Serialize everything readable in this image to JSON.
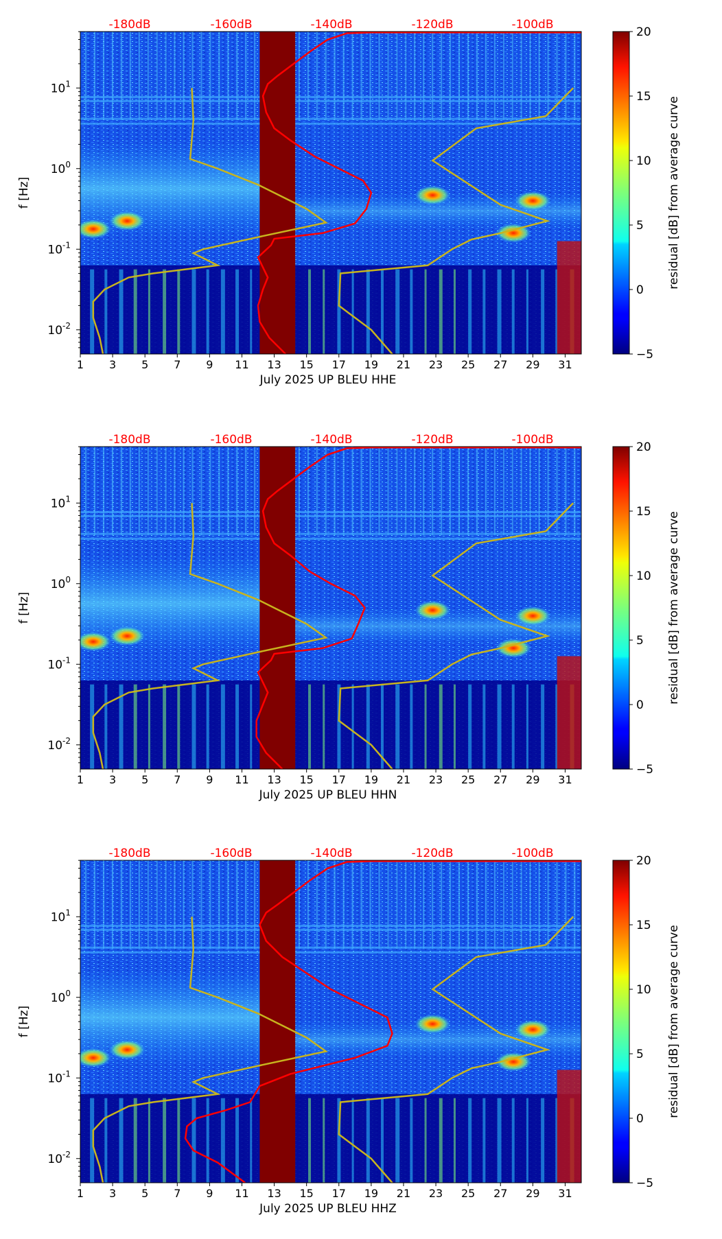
{
  "chart_data": [
    {
      "type": "heatmap",
      "title": "",
      "xlabel": "July 2025 UP BLEU  HHE",
      "ylabel": "f [Hz]",
      "x_ticks": [
        "1",
        "3",
        "5",
        "7",
        "9",
        "11",
        "13",
        "15",
        "17",
        "19",
        "21",
        "23",
        "25",
        "27",
        "29",
        "31"
      ],
      "xlim": [
        1,
        32
      ],
      "ylim_log10": [
        -2.3,
        1.7
      ],
      "y_ticks": [
        {
          "exp": "-2",
          "label": "10"
        },
        {
          "exp": "-1",
          "label": "10"
        },
        {
          "exp": "0",
          "label": "10"
        },
        {
          "exp": "1",
          "label": "10"
        }
      ],
      "top_labels": [
        "-180dB",
        "-160dB",
        "-140dB",
        "-120dB",
        "-100dB"
      ],
      "colorbar": {
        "label": "residual [dB] from average curve",
        "ticks": [
          "20",
          "15",
          "10",
          "5",
          "0",
          "−5"
        ],
        "range": [
          -5,
          20
        ]
      },
      "data_gap_days": [
        12.1,
        14.3
      ],
      "yellow_curve": [
        [
          2.4,
          -2.3
        ],
        [
          2.2,
          -2.1
        ],
        [
          1.8,
          -1.85
        ],
        [
          1.8,
          -1.65
        ],
        [
          2.5,
          -1.5
        ],
        [
          4.0,
          -1.35
        ],
        [
          5.5,
          -1.3
        ],
        [
          7.5,
          -1.25
        ],
        [
          9.5,
          -1.2
        ],
        [
          8.0,
          -1.05
        ],
        [
          8.6,
          -1.0
        ],
        [
          12.0,
          -0.85
        ],
        [
          16.2,
          -0.67
        ],
        [
          15.0,
          -0.5
        ],
        [
          12.0,
          -0.2
        ],
        [
          9.5,
          0.0
        ],
        [
          7.8,
          0.12
        ],
        [
          8.0,
          0.6
        ],
        [
          7.9,
          1.0
        ]
      ],
      "red_curve": [
        [
          13.7,
          -2.3
        ],
        [
          12.7,
          -2.1
        ],
        [
          12.1,
          -1.9
        ],
        [
          12.0,
          -1.7
        ],
        [
          12.3,
          -1.5
        ],
        [
          12.6,
          -1.35
        ],
        [
          12.0,
          -1.1
        ],
        [
          12.8,
          -0.95
        ],
        [
          13.0,
          -0.87
        ],
        [
          16.0,
          -0.8
        ],
        [
          18.0,
          -0.68
        ],
        [
          18.7,
          -0.5
        ],
        [
          19.0,
          -0.3
        ],
        [
          18.5,
          -0.15
        ],
        [
          17.0,
          0.0
        ],
        [
          15.5,
          0.15
        ],
        [
          14.0,
          0.35
        ],
        [
          13.0,
          0.5
        ],
        [
          12.5,
          0.7
        ],
        [
          12.3,
          0.9
        ],
        [
          12.6,
          1.05
        ],
        [
          13.2,
          1.15
        ],
        [
          14.2,
          1.3
        ],
        [
          15.2,
          1.45
        ],
        [
          16.3,
          1.6
        ],
        [
          17.5,
          1.68
        ],
        [
          19.0,
          1.69
        ],
        [
          25.0,
          1.69
        ],
        [
          32.0,
          1.69
        ]
      ],
      "yellow_curve_right": [
        [
          20.3,
          -2.3
        ],
        [
          19.0,
          -2.0
        ],
        [
          17.0,
          -1.7
        ],
        [
          17.1,
          -1.3
        ],
        [
          22.5,
          -1.2
        ],
        [
          24.0,
          -1.0
        ],
        [
          25.2,
          -0.88
        ],
        [
          27.0,
          -0.8
        ],
        [
          29.9,
          -0.65
        ],
        [
          27.0,
          -0.45
        ],
        [
          22.8,
          0.1
        ],
        [
          25.5,
          0.5
        ],
        [
          29.8,
          0.65
        ],
        [
          31.5,
          1.0
        ]
      ],
      "hot_spots": [
        [
          22.8,
          -0.33
        ],
        [
          29.0,
          -0.4
        ],
        [
          27.8,
          -0.8
        ],
        [
          3.9,
          -0.65
        ],
        [
          1.8,
          -0.75
        ]
      ]
    },
    {
      "type": "heatmap",
      "title": "",
      "xlabel": "July 2025 UP BLEU  HHN",
      "ylabel": "f [Hz]",
      "x_ticks": [
        "1",
        "3",
        "5",
        "7",
        "9",
        "11",
        "13",
        "15",
        "17",
        "19",
        "21",
        "23",
        "25",
        "27",
        "29",
        "31"
      ],
      "xlim": [
        1,
        32
      ],
      "ylim_log10": [
        -2.3,
        1.7
      ],
      "y_ticks": [
        {
          "exp": "-2",
          "label": "10"
        },
        {
          "exp": "-1",
          "label": "10"
        },
        {
          "exp": "0",
          "label": "10"
        },
        {
          "exp": "1",
          "label": "10"
        }
      ],
      "top_labels": [
        "-180dB",
        "-160dB",
        "-140dB",
        "-120dB",
        "-100dB"
      ],
      "colorbar": {
        "label": "residual [dB] from average curve",
        "ticks": [
          "20",
          "15",
          "10",
          "5",
          "0",
          "−5"
        ],
        "range": [
          -5,
          20
        ]
      },
      "data_gap_days": [
        12.1,
        14.3
      ],
      "yellow_curve": [
        [
          2.4,
          -2.3
        ],
        [
          2.2,
          -2.1
        ],
        [
          1.8,
          -1.85
        ],
        [
          1.8,
          -1.65
        ],
        [
          2.5,
          -1.5
        ],
        [
          4.0,
          -1.35
        ],
        [
          5.5,
          -1.3
        ],
        [
          7.5,
          -1.25
        ],
        [
          9.5,
          -1.2
        ],
        [
          8.0,
          -1.05
        ],
        [
          8.6,
          -1.0
        ],
        [
          12.0,
          -0.85
        ],
        [
          16.2,
          -0.67
        ],
        [
          15.0,
          -0.5
        ],
        [
          12.0,
          -0.2
        ],
        [
          9.5,
          0.0
        ],
        [
          7.8,
          0.12
        ],
        [
          8.0,
          0.6
        ],
        [
          7.9,
          1.0
        ]
      ],
      "red_curve": [
        [
          13.5,
          -2.3
        ],
        [
          12.5,
          -2.1
        ],
        [
          11.9,
          -1.9
        ],
        [
          11.9,
          -1.7
        ],
        [
          12.3,
          -1.5
        ],
        [
          12.6,
          -1.35
        ],
        [
          12.0,
          -1.1
        ],
        [
          12.8,
          -0.95
        ],
        [
          13.0,
          -0.87
        ],
        [
          16.0,
          -0.8
        ],
        [
          17.8,
          -0.68
        ],
        [
          18.2,
          -0.5
        ],
        [
          18.6,
          -0.3
        ],
        [
          18.0,
          -0.15
        ],
        [
          16.5,
          0.0
        ],
        [
          15.2,
          0.15
        ],
        [
          14.0,
          0.35
        ],
        [
          13.0,
          0.5
        ],
        [
          12.5,
          0.7
        ],
        [
          12.3,
          0.9
        ],
        [
          12.6,
          1.05
        ],
        [
          13.2,
          1.15
        ],
        [
          14.2,
          1.3
        ],
        [
          15.2,
          1.45
        ],
        [
          16.3,
          1.6
        ],
        [
          17.5,
          1.68
        ],
        [
          19.0,
          1.69
        ],
        [
          25.0,
          1.69
        ],
        [
          32.0,
          1.69
        ]
      ],
      "yellow_curve_right": [
        [
          20.3,
          -2.3
        ],
        [
          19.0,
          -2.0
        ],
        [
          17.0,
          -1.7
        ],
        [
          17.1,
          -1.3
        ],
        [
          22.5,
          -1.2
        ],
        [
          24.0,
          -1.0
        ],
        [
          25.2,
          -0.88
        ],
        [
          27.0,
          -0.8
        ],
        [
          29.9,
          -0.65
        ],
        [
          27.0,
          -0.45
        ],
        [
          22.8,
          0.1
        ],
        [
          25.5,
          0.5
        ],
        [
          29.8,
          0.65
        ],
        [
          31.5,
          1.0
        ]
      ],
      "hot_spots": [
        [
          22.8,
          -0.33
        ],
        [
          29.0,
          -0.4
        ],
        [
          27.8,
          -0.8
        ],
        [
          3.9,
          -0.65
        ],
        [
          1.8,
          -0.72
        ]
      ]
    },
    {
      "type": "heatmap",
      "title": "",
      "xlabel": "July 2025 UP BLEU  HHZ",
      "ylabel": "f [Hz]",
      "x_ticks": [
        "1",
        "3",
        "5",
        "7",
        "9",
        "11",
        "13",
        "15",
        "17",
        "19",
        "21",
        "23",
        "25",
        "27",
        "29",
        "31"
      ],
      "xlim": [
        1,
        32
      ],
      "ylim_log10": [
        -2.3,
        1.7
      ],
      "y_ticks": [
        {
          "exp": "-2",
          "label": "10"
        },
        {
          "exp": "-1",
          "label": "10"
        },
        {
          "exp": "0",
          "label": "10"
        },
        {
          "exp": "1",
          "label": "10"
        }
      ],
      "top_labels": [
        "-180dB",
        "-160dB",
        "-140dB",
        "-120dB",
        "-100dB"
      ],
      "colorbar": {
        "label": "residual [dB] from average curve",
        "ticks": [
          "20",
          "15",
          "10",
          "5",
          "0",
          "−5"
        ],
        "range": [
          -5,
          20
        ]
      },
      "data_gap_days": [
        12.1,
        14.3
      ],
      "yellow_curve": [
        [
          2.4,
          -2.3
        ],
        [
          2.2,
          -2.1
        ],
        [
          1.8,
          -1.85
        ],
        [
          1.8,
          -1.65
        ],
        [
          2.5,
          -1.5
        ],
        [
          4.0,
          -1.35
        ],
        [
          5.5,
          -1.3
        ],
        [
          7.5,
          -1.25
        ],
        [
          9.5,
          -1.2
        ],
        [
          8.0,
          -1.05
        ],
        [
          8.6,
          -1.0
        ],
        [
          12.0,
          -0.85
        ],
        [
          16.2,
          -0.67
        ],
        [
          15.0,
          -0.5
        ],
        [
          12.0,
          -0.2
        ],
        [
          9.5,
          0.0
        ],
        [
          7.8,
          0.12
        ],
        [
          8.0,
          0.6
        ],
        [
          7.9,
          1.0
        ]
      ],
      "red_curve": [
        [
          11.2,
          -2.3
        ],
        [
          9.5,
          -2.05
        ],
        [
          8.0,
          -1.9
        ],
        [
          7.5,
          -1.75
        ],
        [
          7.6,
          -1.6
        ],
        [
          8.2,
          -1.5
        ],
        [
          10.0,
          -1.4
        ],
        [
          11.5,
          -1.3
        ],
        [
          12.1,
          -1.1
        ],
        [
          14.0,
          -0.95
        ],
        [
          16.0,
          -0.85
        ],
        [
          18.0,
          -0.75
        ],
        [
          20.0,
          -0.6
        ],
        [
          20.3,
          -0.45
        ],
        [
          20.0,
          -0.25
        ],
        [
          18.5,
          -0.1
        ],
        [
          16.5,
          0.1
        ],
        [
          15.0,
          0.3
        ],
        [
          13.5,
          0.5
        ],
        [
          12.5,
          0.7
        ],
        [
          12.1,
          0.9
        ],
        [
          12.5,
          1.05
        ],
        [
          13.2,
          1.15
        ],
        [
          14.2,
          1.3
        ],
        [
          15.2,
          1.45
        ],
        [
          16.3,
          1.6
        ],
        [
          17.5,
          1.68
        ],
        [
          19.0,
          1.69
        ],
        [
          25.0,
          1.69
        ],
        [
          32.0,
          1.69
        ]
      ],
      "yellow_curve_right": [
        [
          20.3,
          -2.3
        ],
        [
          19.0,
          -2.0
        ],
        [
          17.0,
          -1.7
        ],
        [
          17.1,
          -1.3
        ],
        [
          22.5,
          -1.2
        ],
        [
          24.0,
          -1.0
        ],
        [
          25.2,
          -0.88
        ],
        [
          27.0,
          -0.8
        ],
        [
          29.9,
          -0.65
        ],
        [
          27.0,
          -0.45
        ],
        [
          22.8,
          0.1
        ],
        [
          25.5,
          0.5
        ],
        [
          29.8,
          0.65
        ],
        [
          31.5,
          1.0
        ]
      ],
      "hot_spots": [
        [
          22.8,
          -0.33
        ],
        [
          29.0,
          -0.4
        ],
        [
          27.8,
          -0.8
        ],
        [
          3.9,
          -0.65
        ],
        [
          1.8,
          -0.75
        ]
      ]
    }
  ],
  "colors": {
    "background_field": "#0a3fd6",
    "deep_blue": "#00008f",
    "gap": "#800000",
    "red_curve": "#ff0000",
    "yellow_curve": "#c8b41e",
    "top_label": "#ff0000"
  }
}
